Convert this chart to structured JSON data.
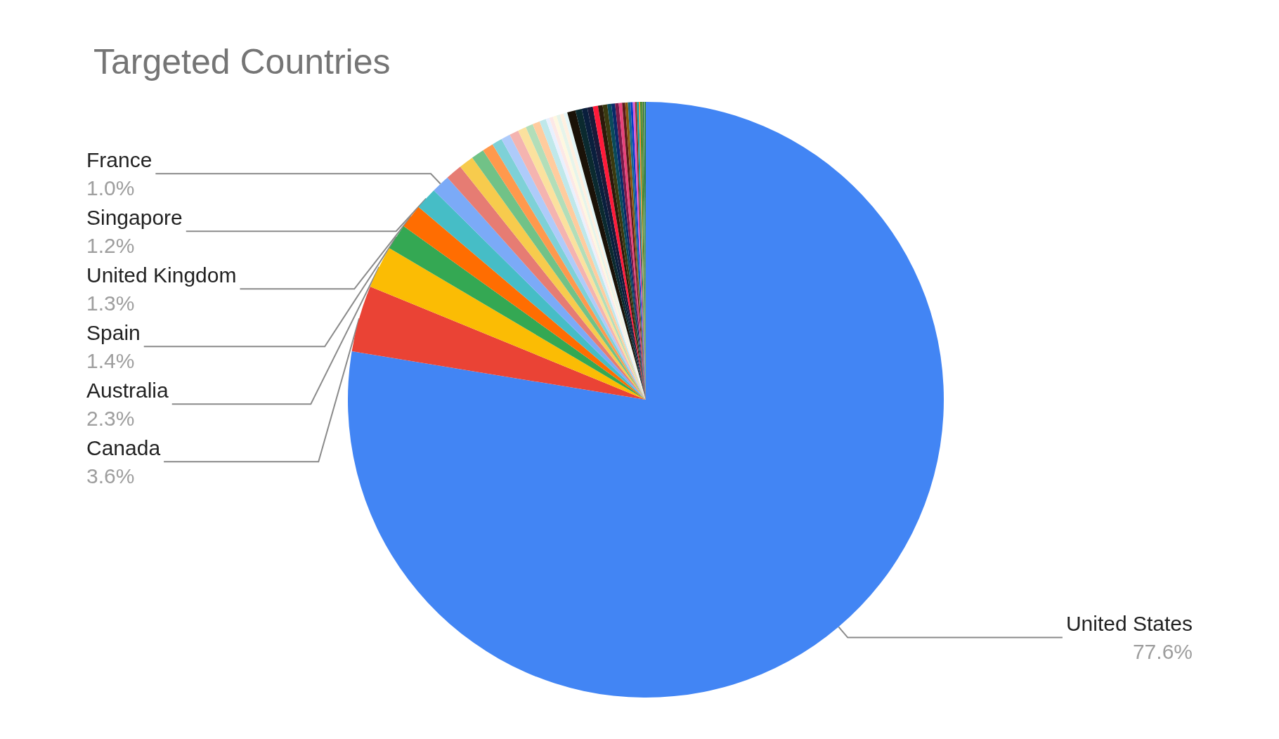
{
  "chart_data": {
    "type": "pie",
    "title": "Targeted Countries",
    "legend": false,
    "categories": [
      "United States",
      "Canada",
      "Australia",
      "Spain",
      "United Kingdom",
      "Singapore",
      "France",
      null,
      null,
      null,
      null,
      null,
      null,
      null,
      null,
      null,
      null,
      null,
      null,
      null,
      null,
      null,
      null,
      null,
      null,
      null,
      null,
      null,
      null,
      null,
      null,
      null,
      null,
      null,
      null,
      null,
      null,
      null,
      null,
      null,
      null,
      null,
      null,
      null,
      null,
      null,
      null,
      null
    ],
    "values": [
      77.6,
      3.6,
      2.3,
      1.4,
      1.3,
      1.2,
      1.0,
      0.9,
      0.8,
      0.7,
      0.6,
      0.55,
      0.5,
      0.5,
      0.45,
      0.4,
      0.4,
      0.35,
      0.2,
      0.2,
      0.2,
      0.2,
      0.2,
      0.2,
      0.45,
      0.35,
      0.3,
      0.3,
      0.28,
      0.25,
      0.25,
      0.22,
      0.2,
      0.2,
      0.18,
      0.16,
      0.15,
      0.14,
      0.12,
      0.12,
      0.1,
      0.1,
      0.08,
      0.08,
      0.06,
      0.06,
      0.05,
      0.05
    ],
    "value_labels": [
      "77.6%",
      "3.6%",
      "2.3%",
      "1.4%",
      "1.3%",
      "1.2%",
      "1.0%",
      null,
      null,
      null,
      null,
      null,
      null,
      null,
      null,
      null,
      null,
      null,
      null,
      null,
      null,
      null,
      null,
      null,
      null,
      null,
      null,
      null,
      null,
      null,
      null,
      null,
      null,
      null,
      null,
      null,
      null,
      null,
      null,
      null,
      null,
      null,
      null,
      null,
      null,
      null,
      null,
      null
    ],
    "colors": [
      "#4285f4",
      "#ea4335",
      "#fbbc04",
      "#34a853",
      "#ff6d01",
      "#46bdc6",
      "#7baaf7",
      "#e67c73",
      "#f7cb4d",
      "#71c287",
      "#ff994d",
      "#7ed1d7",
      "#aecbfa",
      "#f4b4b0",
      "#fbe19e",
      "#b2deb9",
      "#ffcc9e",
      "#bfe8ea",
      "#e8f0fe",
      "#fce8e6",
      "#fef7e0",
      "#e6f4ea",
      "#fff0e0",
      "#e6f7f7",
      "#1a1208",
      "#0b2a2f",
      "#0a1f3d",
      "#1a1a3a",
      "#ff1a3a",
      "#2a1a0a",
      "#3a3a10",
      "#0a4a5a",
      "#0a2a6a",
      "#7a1a4a",
      "#e8437a",
      "#5a1a1a",
      "#8a5a10",
      "#1a6a8a",
      "#0a3aca",
      "#e05ad0",
      "#8a3a2a",
      "#0aa0a0",
      "#ff8a2a",
      "#2a8a2a",
      "#6a8a2a",
      "#2a6a4a",
      "#4a9a4a",
      "#2a7a3a"
    ]
  }
}
